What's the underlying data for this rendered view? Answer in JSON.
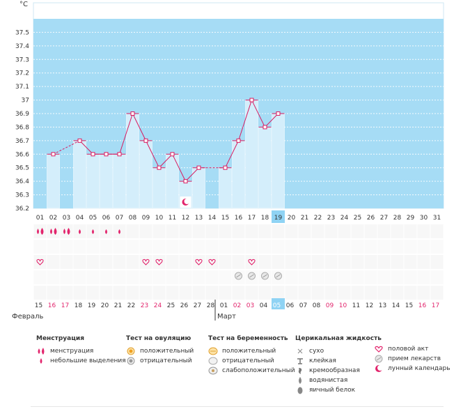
{
  "chart_data": {
    "type": "bar",
    "unit": "°C",
    "ylim": [
      36.2,
      37.6
    ],
    "yticks": [
      "36.2",
      "36.3",
      "36.4",
      "36.5",
      "36.6",
      "36.7",
      "36.8",
      "36.9",
      "37",
      "37.1",
      "37.2",
      "37.3",
      "37.4",
      "37.5"
    ],
    "cycle_days": [
      "01",
      "02",
      "03",
      "04",
      "05",
      "06",
      "07",
      "08",
      "09",
      "10",
      "11",
      "12",
      "13",
      "14",
      "15",
      "16",
      "17",
      "18",
      "19",
      "20",
      "21",
      "22",
      "23",
      "24",
      "25",
      "26",
      "27",
      "28",
      "29",
      "30",
      "31"
    ],
    "values": [
      null,
      36.6,
      null,
      36.7,
      36.6,
      36.6,
      36.6,
      36.9,
      36.7,
      36.5,
      36.6,
      36.4,
      36.5,
      null,
      36.5,
      36.7,
      37.0,
      36.8,
      36.9,
      null,
      null,
      null,
      null,
      null,
      null,
      null,
      null,
      null,
      null,
      null,
      null
    ],
    "highlighted_day": "19",
    "dates": [
      "15",
      "16",
      "17",
      "18",
      "19",
      "20",
      "21",
      "22",
      "23",
      "24",
      "25",
      "26",
      "27",
      "28",
      "01",
      "02",
      "03",
      "04",
      "05",
      "06",
      "07",
      "08",
      "09",
      "10",
      "11",
      "12",
      "13",
      "14",
      "15",
      "16",
      "17"
    ],
    "weekend_dates_index": [
      1,
      2,
      8,
      9,
      15,
      16,
      22,
      23,
      29,
      30
    ],
    "months": [
      {
        "label": "Февраль",
        "start_index": 0
      },
      {
        "label": "Март",
        "start_index": 14
      }
    ],
    "menstruation": [
      "heavy",
      "heavy",
      "heavy",
      "light",
      "light",
      "light",
      "light"
    ],
    "intercourse_days": [
      0,
      8,
      9,
      12,
      13,
      16
    ],
    "pill_days": [
      15,
      16,
      17,
      18
    ],
    "moon_day": 11
  },
  "colors": {
    "band": "#a6dcf5",
    "bar": "#d4eefb",
    "line": "#d81b60",
    "accent_pink": "#e2246c",
    "highlight": "#8fd3f4"
  },
  "legend": [
    {
      "title": "Менструация",
      "items": [
        {
          "icon": "drops-heavy-icon",
          "label": "менструация"
        },
        {
          "icon": "drop-light-icon",
          "label": "небольшие выделения"
        }
      ]
    },
    {
      "title": "Тест на овуляцию",
      "items": [
        {
          "icon": "test-positive-icon",
          "label": "положительный"
        },
        {
          "icon": "test-negative-icon",
          "label": "отрицательный"
        }
      ]
    },
    {
      "title": "Тест на беременность",
      "items": [
        {
          "icon": "pregnancy-positive-icon",
          "label": "положительный"
        },
        {
          "icon": "pregnancy-negative-icon",
          "label": "отрицательный"
        },
        {
          "icon": "pregnancy-weak-icon",
          "label": "слабоположительный"
        }
      ]
    },
    {
      "title": "Церикальная жидкость",
      "items": [
        {
          "icon": "dry-icon",
          "label": "сухо"
        },
        {
          "icon": "sticky-icon",
          "label": "клейкая"
        },
        {
          "icon": "creamy-icon",
          "label": "кремообразная"
        },
        {
          "icon": "watery-icon",
          "label": "водянистая"
        },
        {
          "icon": "eggwhite-icon",
          "label": "яичный белок"
        }
      ]
    },
    {
      "title": "",
      "items": [
        {
          "icon": "heart-icon",
          "label": "половой акт"
        },
        {
          "icon": "pill-icon",
          "label": "прием лекарств"
        },
        {
          "icon": "moon-icon",
          "label": "лунный календарь"
        }
      ]
    }
  ]
}
